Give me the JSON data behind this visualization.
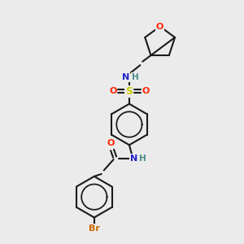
{
  "bg_color": "#ebebeb",
  "bond_color": "#1a1a1a",
  "bond_lw": 1.5,
  "r_hex": 0.85,
  "r_pent": 0.65,
  "colors": {
    "N": "#2222cc",
    "O": "#ff2200",
    "S": "#cccc00",
    "Br": "#cc6600",
    "H": "#4a8a8a",
    "C": "#1a1a1a"
  },
  "fs": 8.0
}
